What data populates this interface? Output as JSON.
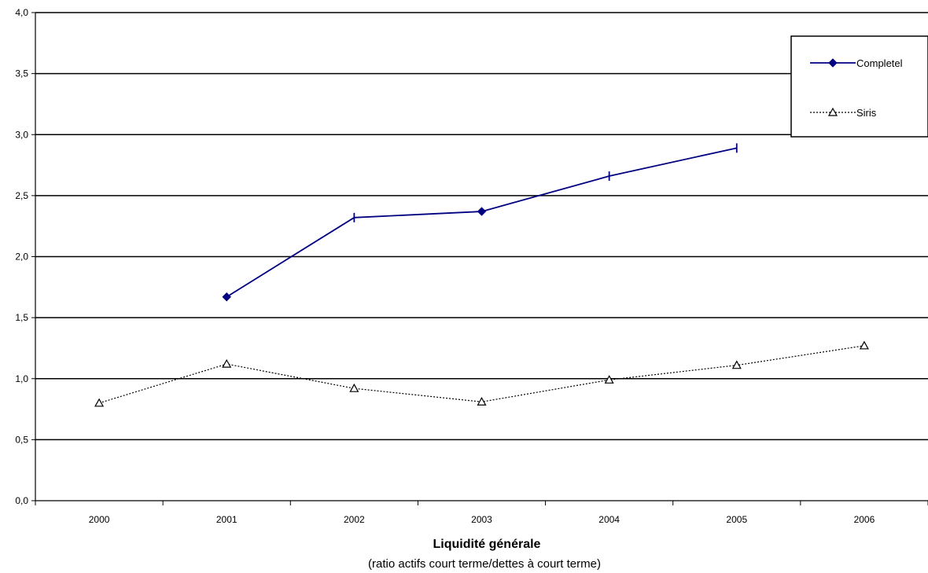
{
  "chart_data": {
    "type": "line",
    "x": [
      "2000",
      "2001",
      "2002",
      "2003",
      "2004",
      "2005",
      "2006"
    ],
    "ylim": [
      0,
      4
    ],
    "yticks": [
      "0,0",
      "0,5",
      "1,0",
      "1,5",
      "2,0",
      "2,5",
      "3,0",
      "3,5",
      "4,0"
    ],
    "ytick_values": [
      0,
      0.5,
      1,
      1.5,
      2,
      2.5,
      3,
      3.5,
      4
    ],
    "grid": "horizontal",
    "legend_position": "top-right",
    "xlabel": "Liquidité générale",
    "subtitle": "(ratio actifs court terme/dettes à court terme)",
    "series": [
      {
        "name": "Completel",
        "values": [
          null,
          1.67,
          2.32,
          2.37,
          2.66,
          2.89,
          null
        ],
        "color": "#000080",
        "style": "solid",
        "marker": "diamond"
      },
      {
        "name": "Siris",
        "values": [
          0.8,
          1.12,
          0.92,
          0.81,
          0.99,
          1.11,
          1.27
        ],
        "color": "#000000",
        "style": "dotted",
        "marker": "triangle"
      }
    ]
  }
}
